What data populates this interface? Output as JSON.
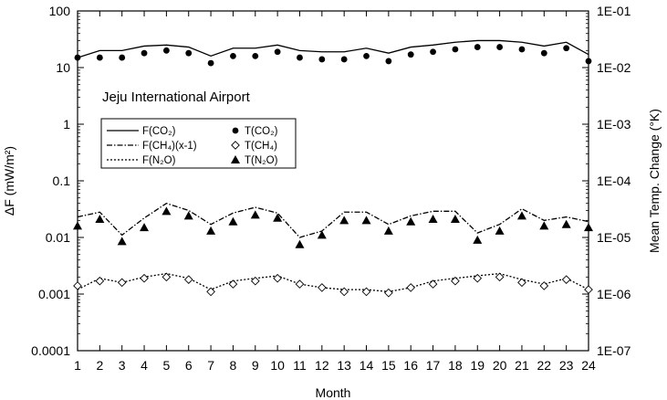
{
  "chart_data": {
    "type": "line",
    "annotation": "Jeju International Airport",
    "xlabel": "Month",
    "ylabel_left": "ΔF (mW/m²)",
    "ylabel_right": "Mean Temp. Change (°K)",
    "x": [
      1,
      2,
      3,
      4,
      5,
      6,
      7,
      8,
      9,
      10,
      11,
      12,
      13,
      14,
      15,
      16,
      17,
      18,
      19,
      20,
      21,
      22,
      23,
      24
    ],
    "x_tick_labels": [
      "1",
      "2",
      "3",
      "4",
      "5",
      "6",
      "7",
      "8",
      "9",
      "10",
      "11",
      "12",
      "13",
      "14",
      "15",
      "16",
      "17",
      "18",
      "19",
      "20",
      "21",
      "22",
      "23",
      "24"
    ],
    "xlim": [
      1,
      24
    ],
    "y_left": {
      "scale": "log",
      "lim": [
        0.0001,
        100
      ],
      "tick_values": [
        0.0001,
        0.001,
        0.01,
        0.1,
        1,
        10,
        100
      ],
      "tick_labels": [
        "0.0001",
        "0.001",
        "0.01",
        "0.1",
        "1",
        "10",
        "100"
      ]
    },
    "y_right": {
      "scale": "log",
      "lim": [
        1e-07,
        0.1
      ],
      "tick_values": [
        1e-07,
        1e-06,
        1e-05,
        0.0001,
        0.001,
        0.01,
        0.1
      ],
      "tick_labels": [
        "1E-07",
        "1E-06",
        "1E-05",
        "1E-04",
        "1E-03",
        "1E-02",
        "1E-01"
      ]
    },
    "legend": {
      "placement": "upper-left inside",
      "entries": [
        {
          "label": "F(CO₂)",
          "kind": "line",
          "dash": "solid"
        },
        {
          "label": "T(CO₂)",
          "kind": "marker",
          "marker": "filled-circle"
        },
        {
          "label": "F(CH₄)(x-1)",
          "kind": "line",
          "dash": "dashdot"
        },
        {
          "label": "T(CH₄)",
          "kind": "marker",
          "marker": "open-diamond"
        },
        {
          "label": "F(N₂O)",
          "kind": "line",
          "dash": "dotted"
        },
        {
          "label": "T(N₂O)",
          "kind": "marker",
          "marker": "filled-triangle"
        }
      ]
    },
    "series": [
      {
        "name": "F(CO₂)",
        "axis": "left",
        "style": "solid",
        "values": [
          15,
          20,
          20,
          24,
          25,
          23,
          16,
          22,
          22,
          25,
          20,
          19,
          19,
          22,
          18,
          23,
          25,
          28,
          30,
          30,
          28,
          24,
          28,
          17
        ]
      },
      {
        "name": "F(CH₄)(x-1)",
        "axis": "left",
        "style": "dashdot",
        "values": [
          0.023,
          0.028,
          0.011,
          0.022,
          0.04,
          0.03,
          0.017,
          0.027,
          0.034,
          0.027,
          0.01,
          0.013,
          0.028,
          0.028,
          0.017,
          0.024,
          0.029,
          0.029,
          0.012,
          0.017,
          0.032,
          0.02,
          0.023,
          0.019
        ]
      },
      {
        "name": "F(N₂O)",
        "axis": "left",
        "style": "dotted",
        "values": [
          0.0012,
          0.0019,
          0.0016,
          0.002,
          0.0023,
          0.0019,
          0.0012,
          0.0017,
          0.0019,
          0.0021,
          0.0015,
          0.0013,
          0.0012,
          0.0012,
          0.0011,
          0.0013,
          0.0017,
          0.0019,
          0.0021,
          0.0023,
          0.0018,
          0.0015,
          0.0019,
          0.0012
        ]
      },
      {
        "name": "T(CO₂)",
        "axis": "right",
        "marker": "filled-circle",
        "values": [
          0.015,
          0.015,
          0.015,
          0.018,
          0.02,
          0.018,
          0.012,
          0.016,
          0.016,
          0.019,
          0.015,
          0.014,
          0.014,
          0.016,
          0.013,
          0.017,
          0.019,
          0.021,
          0.023,
          0.023,
          0.021,
          0.018,
          0.022,
          0.013
        ]
      },
      {
        "name": "T(CH₄)",
        "axis": "right",
        "marker": "open-diamond",
        "values": [
          1.4e-06,
          1.7e-06,
          1.6e-06,
          1.9e-06,
          2e-06,
          1.8e-06,
          1.1e-06,
          1.5e-06,
          1.7e-06,
          1.9e-06,
          1.5e-06,
          1.3e-06,
          1.1e-06,
          1.1e-06,
          1.05e-06,
          1.3e-06,
          1.5e-06,
          1.7e-06,
          1.9e-06,
          2e-06,
          1.6e-06,
          1.4e-06,
          1.8e-06,
          1.2e-06
        ]
      },
      {
        "name": "T(N₂O)",
        "axis": "right",
        "marker": "filled-triangle",
        "values": [
          1.6e-05,
          2.1e-05,
          8.5e-06,
          1.5e-05,
          2.9e-05,
          2.4e-05,
          1.3e-05,
          1.9e-05,
          2.5e-05,
          2.2e-05,
          7.5e-06,
          1.1e-05,
          2e-05,
          2e-05,
          1.3e-05,
          1.9e-05,
          2.1e-05,
          2.1e-05,
          9e-06,
          1.3e-05,
          2.4e-05,
          1.6e-05,
          1.7e-05,
          1.5e-05
        ]
      }
    ]
  }
}
